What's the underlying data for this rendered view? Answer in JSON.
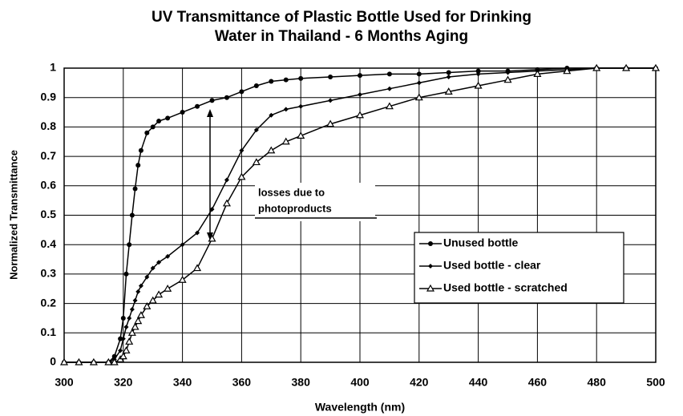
{
  "chart_data": {
    "type": "line",
    "title": [
      "UV Transmittance of Plastic Bottle Used for Drinking",
      "Water in Thailand - 6 Months Aging"
    ],
    "xlabel": "Wavelength (nm)",
    "ylabel": "Normalized Transmittance",
    "x": [
      300,
      305,
      310,
      315,
      317,
      319,
      320,
      321,
      322,
      323,
      324,
      325,
      326,
      328,
      330,
      332,
      335,
      340,
      345,
      350,
      355,
      360,
      365,
      370,
      375,
      380,
      390,
      400,
      410,
      420,
      430,
      440,
      450,
      460,
      470,
      480,
      490,
      500
    ],
    "series": [
      {
        "name": "Unused bottle",
        "color": "#000000",
        "marker": "circle",
        "values": [
          0,
          0,
          0,
          0,
          0.02,
          0.08,
          0.15,
          0.3,
          0.4,
          0.5,
          0.59,
          0.67,
          0.72,
          0.78,
          0.8,
          0.82,
          0.83,
          0.85,
          0.87,
          0.89,
          0.9,
          0.92,
          0.94,
          0.955,
          0.96,
          0.965,
          0.97,
          0.975,
          0.98,
          0.98,
          0.985,
          0.99,
          0.99,
          0.995,
          1,
          1,
          1,
          1
        ]
      },
      {
        "name": "Used bottle - clear",
        "color": "#000000",
        "marker": "diamond",
        "values": [
          0,
          0,
          0,
          0,
          0.01,
          0.04,
          0.08,
          0.12,
          0.15,
          0.18,
          0.21,
          0.24,
          0.26,
          0.29,
          0.32,
          0.34,
          0.36,
          0.4,
          0.44,
          0.52,
          0.62,
          0.72,
          0.79,
          0.84,
          0.86,
          0.87,
          0.89,
          0.91,
          0.93,
          0.95,
          0.97,
          0.98,
          0.985,
          0.99,
          0.995,
          1,
          1,
          1
        ]
      },
      {
        "name": "Used bottle - scratched",
        "color": "#000000",
        "marker": "triangle",
        "values": [
          0,
          0,
          0,
          0,
          0,
          0.01,
          0.02,
          0.04,
          0.07,
          0.1,
          0.12,
          0.14,
          0.16,
          0.19,
          0.21,
          0.23,
          0.25,
          0.28,
          0.32,
          0.42,
          0.54,
          0.63,
          0.68,
          0.72,
          0.75,
          0.77,
          0.81,
          0.84,
          0.87,
          0.9,
          0.92,
          0.94,
          0.96,
          0.98,
          0.99,
          1,
          1,
          1
        ]
      }
    ],
    "xlim": [
      300,
      500
    ],
    "xticks": [
      300,
      320,
      340,
      360,
      380,
      400,
      420,
      440,
      460,
      480,
      500
    ],
    "ylim": [
      0,
      1
    ],
    "yticks": [
      0,
      0.1,
      0.2,
      0.3,
      0.4,
      0.5,
      0.6,
      0.7,
      0.8,
      0.9,
      1
    ],
    "grid": true,
    "legend_position": "center right",
    "annotation": [
      "losses due to",
      "photoproducts"
    ]
  }
}
